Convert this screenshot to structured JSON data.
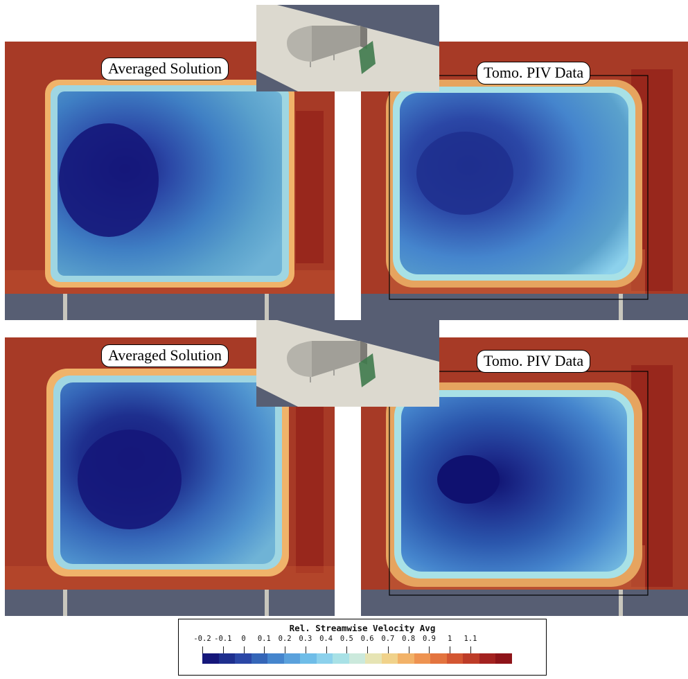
{
  "panels": [
    {
      "id": "top-left",
      "label": "Averaged Solution",
      "kind": "solution"
    },
    {
      "id": "top-right",
      "label": "Tomo. PIV Data",
      "kind": "piv"
    },
    {
      "id": "bottom-left",
      "label": "Averaged Solution",
      "kind": "solution"
    },
    {
      "id": "bottom-right",
      "label": "Tomo. PIV Data",
      "kind": "piv"
    }
  ],
  "colorbar": {
    "title": "Rel. Streamwise Velocity Avg",
    "tick_labels": [
      "-0.2",
      "-0.1",
      "0",
      "0.1",
      "0.2",
      "0.3",
      "0.4",
      "0.5",
      "0.6",
      "0.7",
      "0.8",
      "0.9",
      "1",
      "1.1"
    ],
    "min": -0.2,
    "max": 1.3,
    "colors": [
      "#15177a",
      "#1e2f8e",
      "#2b47a6",
      "#3566b8",
      "#4585cd",
      "#5aa1dc",
      "#6fbde8",
      "#8cd1ec",
      "#a8e1e6",
      "#cbe9dc",
      "#e6e4b4",
      "#f0d28b",
      "#f2b268",
      "#ee9351",
      "#e3743f",
      "#d35632",
      "#bd3c28",
      "#a32220",
      "#8e1419"
    ]
  },
  "colors": {
    "background_red": "#a73a26",
    "ground_gray": "#575e73",
    "strut_gray": "#c8c6bd",
    "inset_bg": "#dcd9cf",
    "plane_green": "#3f7a4d"
  },
  "icons": [
    "vehicle-model-icon",
    "measurement-plane-icon"
  ]
}
